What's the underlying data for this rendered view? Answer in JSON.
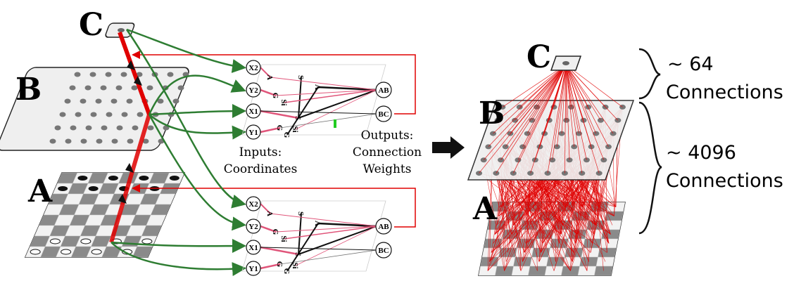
{
  "left": {
    "labels": {
      "c": "C",
      "b": "B",
      "a": "A"
    },
    "inputs_caption": [
      "Inputs:",
      "Coordinates"
    ],
    "outputs_caption": [
      "Outputs:",
      "Connection",
      "Weights"
    ],
    "cppn_top": {
      "inputs": [
        "X2",
        "Y2",
        "X1",
        "Y1"
      ],
      "outputs": [
        "AB",
        "BC"
      ],
      "hidden": [
        "A",
        "G",
        "Si",
        "S",
        "S",
        "A",
        "Si",
        "G",
        "G"
      ]
    },
    "cppn_bottom": {
      "inputs": [
        "X2",
        "Y2",
        "X1",
        "Y1"
      ],
      "outputs": [
        "AB",
        "BC"
      ],
      "hidden": [
        "A",
        "G",
        "Si",
        "S",
        "S",
        "A",
        "Si",
        "G",
        "G"
      ]
    }
  },
  "right": {
    "labels": {
      "c": "C",
      "b": "B",
      "a": "A"
    },
    "top_count": "~ 64",
    "top_word": "Connections",
    "bottom_count": "~ 4096",
    "bottom_word": "Connections"
  },
  "colors": {
    "red": "#e00000",
    "green": "#2e7d32",
    "pink": "#e0557a",
    "grey": "#777777",
    "plate": "#efefef"
  }
}
